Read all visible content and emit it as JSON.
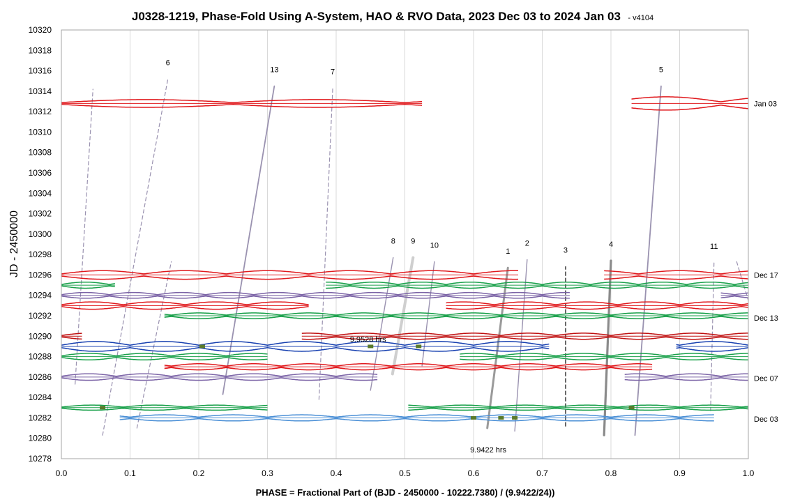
{
  "chart_data": {
    "type": "line",
    "title": "J0328-1219, Phase-Fold Using A-System, HAO & RVO Data, 2023 Dec 03 to 2024 Jan 03",
    "version": "- v4104",
    "xlabel": "PHASE = Fractional Part of (BJD - 2450000 - 10222.7380) / (9.9422/24))",
    "ylabel": "JD - 2450000",
    "xlim": [
      0.0,
      1.0
    ],
    "ylim": [
      10278,
      10320
    ],
    "x_ticks": [
      "0.0",
      "0.1",
      "0.2",
      "0.3",
      "0.4",
      "0.5",
      "0.6",
      "0.7",
      "0.8",
      "0.9",
      "1.0"
    ],
    "y_ticks": [
      "10278",
      "10280",
      "10282",
      "10284",
      "10286",
      "10288",
      "10290",
      "10292",
      "10294",
      "10296",
      "10298",
      "10300",
      "10302",
      "10304",
      "10306",
      "10308",
      "10310",
      "10312",
      "10314",
      "10316",
      "10318",
      "10320"
    ],
    "grid": "vertical",
    "date_labels": [
      {
        "text": "Jan 03",
        "y": 10312.8
      },
      {
        "text": "Dec 17",
        "y": 10296.0
      },
      {
        "text": "Dec 13",
        "y": 10291.8
      },
      {
        "text": "Dec 07",
        "y": 10285.9
      },
      {
        "text": "Dec 03",
        "y": 10281.9
      }
    ],
    "annotations": [
      {
        "text": "9.9528 hrs",
        "x": 0.42,
        "y": 10289.7
      },
      {
        "text": "9.9422 hrs",
        "x": 0.595,
        "y": 10278.9
      }
    ],
    "drift_lines": [
      {
        "label": "6",
        "x1": 0.06,
        "y1": 10280.3,
        "x2": 0.155,
        "y2": 10315.2,
        "style": "dashed",
        "color": "#9a92b0",
        "width": 1.2
      },
      {
        "label": "13",
        "x1": 0.235,
        "y1": 10284.3,
        "x2": 0.31,
        "y2": 10314.5,
        "style": "solid",
        "color": "#9a92b0",
        "width": 1.8
      },
      {
        "label": "7",
        "x1": 0.375,
        "y1": 10283.8,
        "x2": 0.395,
        "y2": 10314.3,
        "style": "dashed",
        "color": "#9a92b0",
        "width": 1.2
      },
      {
        "label": "5",
        "x1": 0.835,
        "y1": 10280.3,
        "x2": 0.873,
        "y2": 10314.5,
        "style": "solid",
        "color": "#9a92b0",
        "width": 1.8
      },
      {
        "label": "8",
        "x1": 0.45,
        "y1": 10284.7,
        "x2": 0.483,
        "y2": 10297.7,
        "style": "solid",
        "color": "#9a92b0",
        "width": 1.4
      },
      {
        "label": "9",
        "x1": 0.482,
        "y1": 10286.3,
        "x2": 0.512,
        "y2": 10297.7,
        "style": "solid",
        "color": "#cfcfcf",
        "width": 4
      },
      {
        "label": "10",
        "x1": 0.525,
        "y1": 10287.1,
        "x2": 0.543,
        "y2": 10297.3,
        "style": "solid",
        "color": "#9a92b0",
        "width": 1.4
      },
      {
        "label": "1",
        "x1": 0.62,
        "y1": 10281.0,
        "x2": 0.65,
        "y2": 10296.7,
        "style": "solid",
        "color": "#9a9a9a",
        "width": 3
      },
      {
        "label": "2",
        "x1": 0.66,
        "y1": 10280.7,
        "x2": 0.678,
        "y2": 10297.5,
        "style": "solid",
        "color": "#9a92b0",
        "width": 1.4
      },
      {
        "label": "3",
        "x1": 0.734,
        "y1": 10281.2,
        "x2": 0.734,
        "y2": 10296.8,
        "style": "dashed",
        "color": "#444444",
        "width": 1.6
      },
      {
        "label": "4",
        "x1": 0.79,
        "y1": 10280.3,
        "x2": 0.8,
        "y2": 10297.4,
        "style": "solid",
        "color": "#8a8a8a",
        "width": 3.2
      },
      {
        "label": "11",
        "x1": 0.945,
        "y1": 10282.7,
        "x2": 0.95,
        "y2": 10297.2,
        "style": "dashed",
        "color": "#9a92b0",
        "width": 1.2
      },
      {
        "label": "",
        "x1": 0.02,
        "y1": 10285.3,
        "x2": 0.046,
        "y2": 10314.2,
        "style": "dashed",
        "color": "#9a92b0",
        "width": 1.2
      },
      {
        "label": "",
        "x1": 0.11,
        "y1": 10281.0,
        "x2": 0.16,
        "y2": 10297.3,
        "style": "dashed",
        "color": "#9a92b0",
        "width": 1.2
      },
      {
        "label": "",
        "x1": 0.983,
        "y1": 10297.3,
        "x2": 1.0,
        "y2": 10293.5,
        "style": "dashed",
        "color": "#9a92b0",
        "width": 1.2
      }
    ],
    "series": [
      {
        "y": 10312.8,
        "segments": [
          [
            0.0,
            0.525
          ]
        ],
        "color": "#e0191d",
        "amp": 0.38,
        "period": 0.25
      },
      {
        "y": 10312.8,
        "segments": [
          [
            0.83,
            1.0
          ]
        ],
        "color": "#e0191d",
        "amp": 0.65,
        "period": 0.16
      },
      {
        "y": 10296.0,
        "segments": [
          [
            0.0,
            0.665
          ],
          [
            0.79,
            1.0
          ]
        ],
        "color": "#e0191d",
        "amp": 0.42,
        "period": 0.12
      },
      {
        "y": 10295.0,
        "segments": [
          [
            0.0,
            0.078
          ],
          [
            0.385,
            1.0
          ]
        ],
        "color": "#19a04a",
        "amp": 0.3,
        "period": 0.07
      },
      {
        "y": 10294.0,
        "segments": [
          [
            0.0,
            0.74
          ],
          [
            0.96,
            1.0
          ]
        ],
        "color": "#7b63a6",
        "amp": 0.28,
        "period": 0.07
      },
      {
        "y": 10293.0,
        "segments": [
          [
            0.0,
            0.36
          ],
          [
            0.56,
            1.0
          ]
        ],
        "color": "#e0191d",
        "amp": 0.36,
        "period": 0.09
      },
      {
        "y": 10292.0,
        "segments": [
          [
            0.15,
            1.0
          ]
        ],
        "color": "#19a04a",
        "amp": 0.28,
        "period": 0.08
      },
      {
        "y": 10290.0,
        "segments": [
          [
            0.0,
            0.03
          ],
          [
            0.35,
            1.0
          ]
        ],
        "color": "#c01010",
        "amp": 0.3,
        "period": 0.08
      },
      {
        "y": 10289.0,
        "segments": [
          [
            0.0,
            0.71
          ],
          [
            0.895,
            1.0
          ]
        ],
        "color": "#1740b0",
        "amp": 0.48,
        "period": 0.1
      },
      {
        "y": 10288.0,
        "segments": [
          [
            0.0,
            0.3
          ],
          [
            0.58,
            1.0
          ]
        ],
        "color": "#19a04a",
        "amp": 0.32,
        "period": 0.08
      },
      {
        "y": 10287.0,
        "segments": [
          [
            0.15,
            0.86
          ]
        ],
        "color": "#e0191d",
        "amp": 0.3,
        "period": 0.08
      },
      {
        "y": 10286.0,
        "segments": [
          [
            0.0,
            0.46
          ],
          [
            0.82,
            1.0
          ]
        ],
        "color": "#7b63a6",
        "amp": 0.32,
        "period": 0.08
      },
      {
        "y": 10283.0,
        "segments": [
          [
            0.0,
            0.3
          ],
          [
            0.505,
            1.0
          ]
        ],
        "color": "#19a04a",
        "amp": 0.25,
        "period": 0.09
      },
      {
        "y": 10282.0,
        "segments": [
          [
            0.085,
            0.95
          ]
        ],
        "color": "#4a8fd6",
        "amp": 0.3,
        "period": 0.1
      }
    ],
    "minima_markers": [
      {
        "x": 0.205,
        "y": 10289.0
      },
      {
        "x": 0.45,
        "y": 10289.0
      },
      {
        "x": 0.52,
        "y": 10289.0
      },
      {
        "x": 0.06,
        "y": 10283.0
      },
      {
        "x": 0.83,
        "y": 10283.0
      },
      {
        "x": 0.6,
        "y": 10282.0
      },
      {
        "x": 0.64,
        "y": 10282.0
      },
      {
        "x": 0.66,
        "y": 10282.0
      }
    ]
  }
}
